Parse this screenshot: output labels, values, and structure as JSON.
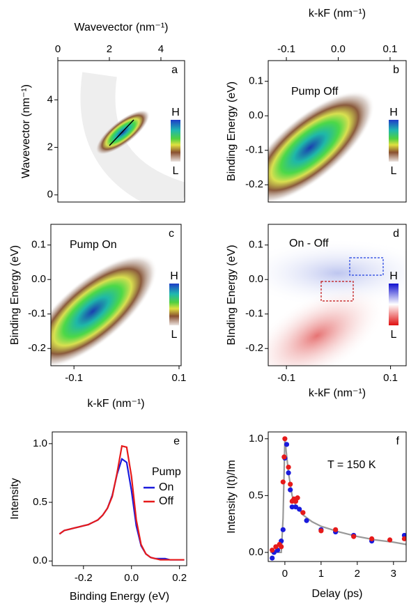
{
  "chart_data": [
    {
      "type": "image",
      "panel": "a",
      "xlabel": "Wavevector (nm⁻¹)",
      "ylabel": "Wavevector (nm⁻¹)",
      "xlim": [
        0,
        4.92
      ],
      "ylim": [
        -0.3,
        5.65
      ],
      "xticks": [
        0,
        2,
        4
      ],
      "yticks": [
        0,
        2,
        4
      ],
      "colorbar": {
        "high": "H",
        "low": "L"
      }
    },
    {
      "type": "image",
      "panel": "b",
      "annotation": "Pump Off",
      "xlabel": "k-kF (nm⁻¹)",
      "ylabel": "Binding Energy (eV)",
      "xlim": [
        -0.135,
        0.131
      ],
      "ylim": [
        -0.25,
        0.16
      ],
      "xticks": [
        -0.1,
        {
          "value": 0,
          "label": "0.0"
        },
        0.1
      ],
      "yticks": [
        -0.2,
        -0.1,
        {
          "value": 0,
          "label": "0.0"
        },
        0.1
      ],
      "colorbar": {
        "high": "H",
        "low": "L"
      }
    },
    {
      "type": "image",
      "panel": "c",
      "annotation": "Pump On",
      "xlabel": "k-kF (nm⁻¹)",
      "ylabel": "Binding Energy (eV)",
      "xlim": [
        -0.144,
        0.104
      ],
      "ylim": [
        -0.25,
        0.16
      ],
      "xticks": [
        -0.1,
        0.1
      ],
      "yticks": [
        -0.2,
        -0.1,
        {
          "value": 0,
          "label": "0.0"
        },
        0.1
      ],
      "colorbar": {
        "high": "H",
        "low": "L"
      }
    },
    {
      "type": "diffimage",
      "panel": "d",
      "annotation": "On - Off",
      "xlabel": "k-kF (nm⁻¹)",
      "ylabel": "BInding Energy (eV)",
      "xlim": [
        -0.135,
        0.13
      ],
      "ylim": [
        -0.25,
        0.16
      ],
      "xticks": [
        -0.1,
        0.1
      ],
      "yticks": [
        -0.2,
        -0.1,
        {
          "value": 0,
          "label": "0.0"
        },
        0.1
      ],
      "colorbar": {
        "high": "H",
        "low": "L"
      }
    },
    {
      "type": "line",
      "panel": "e",
      "xlabel": "Binding Energy (eV)",
      "ylabel": "Intensity",
      "legend_title": "Pump",
      "xlim": [
        -0.33,
        0.23
      ],
      "ylim": [
        -0.04,
        1.1
      ],
      "xticks": [
        -0.2,
        {
          "value": 0,
          "label": "0.0"
        },
        0.2
      ],
      "yticks": [
        {
          "value": 0,
          "label": "0.0"
        },
        0.5,
        {
          "value": 1,
          "label": "1.0"
        }
      ],
      "x": [
        -0.3,
        -0.28,
        -0.26,
        -0.24,
        -0.22,
        -0.2,
        -0.18,
        -0.16,
        -0.14,
        -0.12,
        -0.1,
        -0.08,
        -0.06,
        -0.04,
        -0.02,
        0,
        0.02,
        0.04,
        0.06,
        0.08,
        0.1,
        0.12,
        0.14,
        0.16,
        0.18,
        0.2,
        0.22
      ],
      "series": [
        {
          "name": "On",
          "color": "#1a1adc",
          "values": [
            0.23,
            0.26,
            0.27,
            0.28,
            0.29,
            0.3,
            0.31,
            0.33,
            0.35,
            0.39,
            0.45,
            0.56,
            0.74,
            0.87,
            0.84,
            0.6,
            0.3,
            0.13,
            0.06,
            0.03,
            0.02,
            0.02,
            0.02,
            0.01,
            0.01,
            0.01,
            0.01
          ]
        },
        {
          "name": "Off",
          "color": "#e61a1a",
          "values": [
            0.23,
            0.26,
            0.27,
            0.28,
            0.29,
            0.3,
            0.31,
            0.33,
            0.35,
            0.39,
            0.45,
            0.55,
            0.75,
            0.98,
            0.97,
            0.72,
            0.35,
            0.14,
            0.06,
            0.03,
            0.02,
            0.01,
            0.01,
            0.01,
            0.01,
            0.01,
            0.01
          ]
        }
      ]
    },
    {
      "type": "scatter",
      "panel": "f",
      "annotation": "T = 150 K",
      "xlabel": "Delay (ps)",
      "ylabel": "Intensity  I(t)/Im",
      "xlim": [
        -0.46,
        3.35
      ],
      "ylim": [
        -0.08,
        1.06
      ],
      "xticks": [
        0,
        1,
        2,
        3
      ],
      "yticks": [
        {
          "value": 0,
          "label": "0.0"
        },
        0.5,
        {
          "value": 1,
          "label": "1.0"
        }
      ],
      "series": [
        {
          "kind": "line",
          "color": "#999999",
          "x": [
            -0.4,
            -0.1,
            -0.05,
            0,
            0.1,
            0.2,
            0.3,
            0.5,
            0.75,
            1,
            1.5,
            2,
            2.5,
            3,
            3.35
          ],
          "values": [
            0,
            0,
            0.3,
            1.0,
            0.7,
            0.5,
            0.41,
            0.33,
            0.27,
            0.23,
            0.18,
            0.14,
            0.11,
            0.09,
            0.07
          ]
        },
        {
          "kind": "scatter",
          "color": "#1a1adc",
          "x": [
            -0.35,
            -0.3,
            -0.2,
            -0.1,
            -0.05,
            0,
            0.05,
            0.1,
            0.15,
            0.2,
            0.3,
            0.4,
            0.6,
            1.0,
            1.4,
            1.9,
            2.4,
            3.3
          ],
          "values": [
            -0.05,
            0,
            0.02,
            0.1,
            0.2,
            0.83,
            0.95,
            0.7,
            0.55,
            0.4,
            0.4,
            0.38,
            0.28,
            0.2,
            0.18,
            0.15,
            0.1,
            0.15
          ]
        },
        {
          "kind": "scatter",
          "color": "#e61a1a",
          "x": [
            -0.35,
            -0.25,
            -0.15,
            -0.1,
            -0.05,
            -0.02,
            0,
            0.1,
            0.15,
            0.2,
            0.25,
            0.3,
            0.35,
            0.5,
            1.0,
            1.4,
            1.9,
            2.4,
            2.9,
            3.3
          ],
          "values": [
            0.02,
            0.05,
            0.07,
            0.05,
            0.62,
            0.84,
            1.0,
            0.75,
            0.6,
            0.45,
            0.47,
            0.45,
            0.48,
            0.35,
            0.19,
            0.2,
            0.14,
            0.12,
            0.11,
            0.12
          ]
        }
      ]
    }
  ]
}
